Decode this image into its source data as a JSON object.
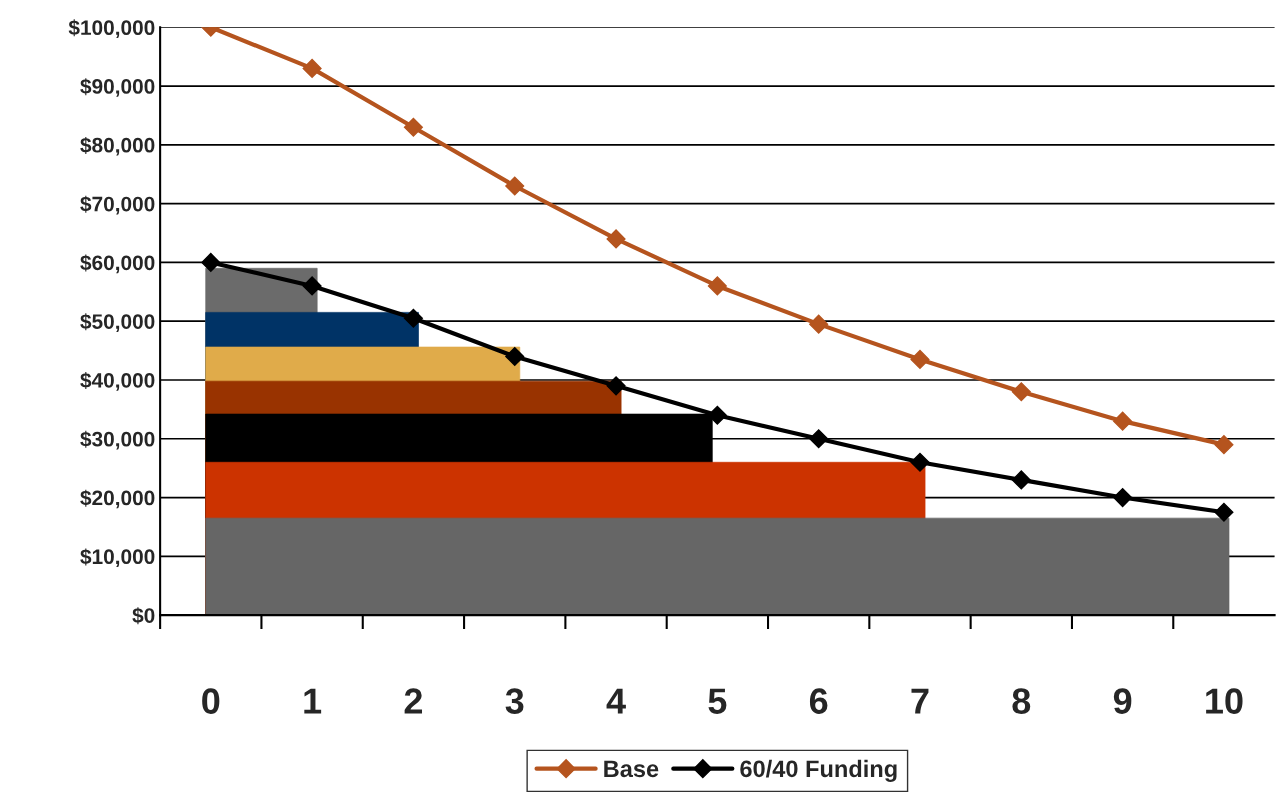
{
  "chart_data": {
    "type": "line",
    "x": [
      0,
      1,
      2,
      3,
      4,
      5,
      6,
      7,
      8,
      9,
      10
    ],
    "xlim": [
      -0.5,
      10.5
    ],
    "xticks": [
      0,
      1,
      2,
      3,
      4,
      5,
      6,
      7,
      8,
      9,
      10
    ],
    "ylim": [
      0,
      100000
    ],
    "yticks": [
      {
        "value": 0,
        "label": "$0"
      },
      {
        "value": 10000,
        "label": "$10,000"
      },
      {
        "value": 20000,
        "label": "$20,000"
      },
      {
        "value": 30000,
        "label": "$30,000"
      },
      {
        "value": 40000,
        "label": "$40,000"
      },
      {
        "value": 50000,
        "label": "$50,000"
      },
      {
        "value": 60000,
        "label": "$60,000"
      },
      {
        "value": 70000,
        "label": "$70,000"
      },
      {
        "value": 80000,
        "label": "$80,000"
      },
      {
        "value": 90000,
        "label": "$90,000"
      },
      {
        "value": 100000,
        "label": "$100,000"
      }
    ],
    "grid": "y",
    "legend": "bottom",
    "line_style": "solid",
    "series": [
      {
        "type": "area",
        "color": "#6b6b6b",
        "x": [
          -0.05,
          1.05
        ],
        "values": [
          59000,
          59000
        ]
      },
      {
        "type": "area",
        "color": "#003366",
        "x": [
          -0.05,
          2.05
        ],
        "values": [
          51500,
          51500
        ]
      },
      {
        "type": "area",
        "color": "#e0ab4a",
        "x": [
          -0.05,
          3.05
        ],
        "values": [
          45600,
          45600
        ]
      },
      {
        "type": "area",
        "color": "#993300",
        "x": [
          -0.05,
          4.05
        ],
        "values": [
          39800,
          39800
        ]
      },
      {
        "type": "area",
        "color": "#000000",
        "x": [
          -0.05,
          4.95
        ],
        "values": [
          34200,
          34200
        ]
      },
      {
        "type": "area",
        "color": "#cc3300",
        "x": [
          -0.05,
          7.05
        ],
        "values": [
          26000,
          26000
        ]
      },
      {
        "type": "area",
        "color": "#666666",
        "x": [
          -0.05,
          10.05
        ],
        "values": [
          16500,
          16500
        ]
      },
      {
        "name": "Base",
        "color": "#b5541e",
        "marker": "diamond",
        "values": [
          100000,
          93000,
          83000,
          73000,
          64000,
          56000,
          49500,
          43500,
          38000,
          33000,
          29000
        ]
      },
      {
        "name": "60/40 Funding",
        "color": "#000000",
        "marker": "diamond",
        "values": [
          60000,
          56000,
          50500,
          44000,
          39000,
          34000,
          30000,
          26000,
          23000,
          20000,
          17500
        ]
      }
    ]
  }
}
